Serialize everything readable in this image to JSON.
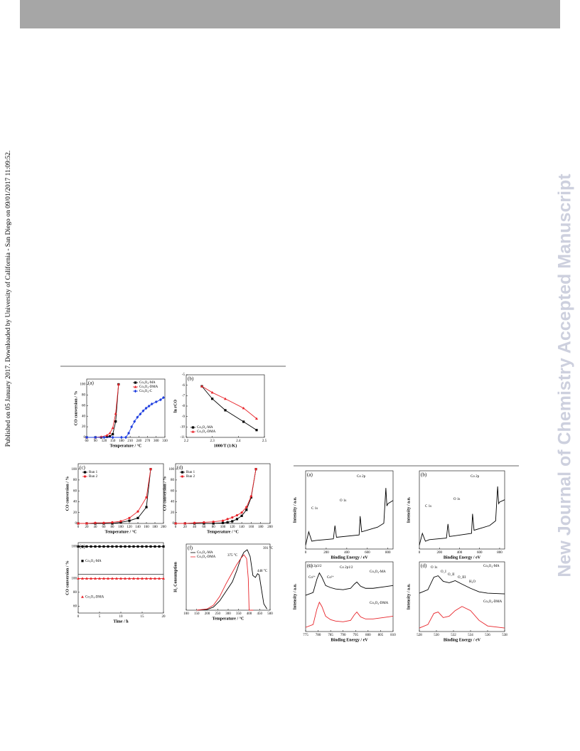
{
  "header": {
    "color": "#a6a6a6"
  },
  "sidebar": "Published on 05 January 2017. Downloaded by University of California - San Diego on 09/01/2017 11:09:52.",
  "watermark": "New Journal of Chemistry Accepted Manuscript",
  "figure1": {
    "panels": [
      {
        "label": "(a)",
        "xlabel": "Temperature / °C",
        "ylabel": "CO conversion / %",
        "xlim": [
          60,
          330
        ],
        "xticks": [
          60,
          90,
          120,
          150,
          180,
          210,
          240,
          270,
          300,
          330
        ],
        "ylim": [
          0,
          110
        ],
        "yticks": [
          0,
          20,
          40,
          60,
          80,
          100
        ],
        "legend": "upper right",
        "series": [
          {
            "name": "Co₃O₄-MA",
            "color": "#000000",
            "marker": "square",
            "x": [
              60,
              90,
              110,
              130,
              140,
              150,
              160,
              170
            ],
            "values": [
              0,
              0,
              0,
              1,
              2,
              6,
              30,
              100
            ]
          },
          {
            "name": "Co₃O₄-DMA",
            "color": "#e8242a",
            "marker": "triangle",
            "x": [
              60,
              90,
              110,
              130,
              140,
              150,
              160,
              170
            ],
            "values": [
              0,
              0,
              1,
              4,
              8,
              18,
              45,
              100
            ]
          },
          {
            "name": "Co₃O₄-C",
            "color": "#1f3fe0",
            "marker": "diamond",
            "x": [
              60,
              90,
              120,
              150,
              180,
              195,
              205,
              215,
              225,
              235,
              245,
              255,
              265,
              275,
              285,
              300,
              315,
              325
            ],
            "values": [
              0,
              0,
              0,
              0,
              0,
              0,
              8,
              20,
              30,
              38,
              44,
              50,
              55,
              59,
              63,
              67,
              71,
              75
            ]
          }
        ]
      },
      {
        "label": "(b)",
        "xlabel": "1000/T (1/K)",
        "ylabel": "ln rCO",
        "xlim": [
          2.2,
          2.5
        ],
        "xticks": [
          2.2,
          2.3,
          2.4,
          2.5
        ],
        "ylim": [
          -11,
          -5
        ],
        "yticks": [
          -11,
          -10,
          -9,
          -8,
          -7,
          -6,
          -5
        ],
        "legend": "lower left",
        "series": [
          {
            "name": "Co₃O₄-MA",
            "color": "#000000",
            "marker": "square",
            "x": [
              2.26,
              2.3,
              2.35,
              2.42,
              2.47
            ],
            "values": [
              -6.1,
              -7.3,
              -8.4,
              -9.5,
              -10.3
            ]
          },
          {
            "name": "Co₃O₄-DMA",
            "color": "#e8242a",
            "marker": "triangle",
            "x": [
              2.26,
              2.3,
              2.35,
              2.42,
              2.47
            ],
            "values": [
              -6.1,
              -6.7,
              -7.3,
              -8.2,
              -9.2
            ]
          }
        ]
      },
      {
        "label": "(c)",
        "xlabel": "Temperature / °C",
        "ylabel": "CO conversion / %",
        "xlim": [
          0,
          200
        ],
        "xticks": [
          0,
          20,
          40,
          60,
          80,
          100,
          120,
          140,
          160,
          180,
          200
        ],
        "ylim": [
          0,
          110
        ],
        "yticks": [
          0,
          20,
          40,
          60,
          80,
          100
        ],
        "legend": "upper left",
        "series": [
          {
            "name": "Run 1",
            "color": "#000000",
            "marker": "square",
            "x": [
              0,
              20,
              40,
              60,
              80,
              100,
              120,
              140,
              160,
              170
            ],
            "values": [
              0,
              0,
              0,
              0,
              0,
              2,
              5,
              10,
              30,
              100
            ]
          },
          {
            "name": "Run 2",
            "color": "#e8242a",
            "marker": "circle",
            "x": [
              0,
              20,
              40,
              60,
              80,
              100,
              120,
              140,
              160,
              170
            ],
            "values": [
              0,
              0,
              1,
              1,
              2,
              4,
              10,
              22,
              48,
              100
            ]
          }
        ]
      },
      {
        "label": "(d)",
        "xlabel": "Temperature / °C",
        "ylabel": "CO conversion / %",
        "xlim": [
          0,
          200
        ],
        "xticks": [
          0,
          20,
          40,
          60,
          80,
          100,
          120,
          140,
          160,
          180,
          200
        ],
        "ylim": [
          0,
          110
        ],
        "yticks": [
          0,
          20,
          40,
          60,
          80,
          100
        ],
        "legend": "upper left",
        "series": [
          {
            "name": "Run 1",
            "color": "#000000",
            "marker": "square",
            "x": [
              0,
              20,
              40,
              60,
              80,
              100,
              110,
              120,
              130,
              140,
              150,
              160,
              170
            ],
            "values": [
              0,
              0,
              0,
              0,
              0,
              1,
              2,
              4,
              8,
              14,
              25,
              48,
              100
            ]
          },
          {
            "name": "Run 2",
            "color": "#e8242a",
            "marker": "circle",
            "x": [
              0,
              20,
              40,
              60,
              80,
              100,
              110,
              120,
              130,
              140,
              150,
              160,
              170
            ],
            "values": [
              0,
              0,
              1,
              2,
              3,
              5,
              8,
              11,
              15,
              20,
              30,
              50,
              100
            ]
          }
        ]
      },
      {
        "label": "(e)",
        "xlabel": "Time / h",
        "ylabel": "CO conversion / %",
        "xlim": [
          0,
          20
        ],
        "xticks": [
          0,
          5,
          10,
          15,
          20
        ],
        "subplots": [
          {
            "ylim": [
              93,
              101
            ],
            "yticks": [
              100
            ],
            "series": [
              {
                "name": "Co₃O₄-MA",
                "color": "#000000",
                "marker": "square",
                "x": [
                  0,
                  1,
                  2,
                  3,
                  4,
                  5,
                  6,
                  7,
                  8,
                  9,
                  10,
                  11,
                  12,
                  13,
                  14,
                  15,
                  16,
                  17,
                  18,
                  19,
                  20
                ],
                "values": [
                  100,
                  100,
                  100,
                  100,
                  100,
                  100,
                  100,
                  100,
                  100,
                  100,
                  100,
                  100,
                  100,
                  100,
                  100,
                  100,
                  100,
                  100,
                  100,
                  100,
                  100
                ]
              }
            ]
          },
          {
            "ylim": [
              50,
              105
            ],
            "yticks": [
              60,
              80,
              100
            ],
            "series": [
              {
                "name": "Co₃O₄-DMA",
                "color": "#e8242a",
                "marker": "triangle",
                "x": [
                  0,
                  1,
                  2,
                  3,
                  4,
                  5,
                  6,
                  7,
                  8,
                  9,
                  10,
                  11,
                  12,
                  13,
                  14,
                  15,
                  16,
                  17,
                  18,
                  19,
                  20
                ],
                "values": [
                  100,
                  100,
                  100,
                  100,
                  100,
                  100,
                  100,
                  100,
                  100,
                  100,
                  100,
                  100,
                  100,
                  100,
                  100,
                  100,
                  100,
                  100,
                  100,
                  100,
                  100
                ]
              }
            ]
          }
        ]
      },
      {
        "label": "(f)",
        "xlabel": "Temperature / °C",
        "ylabel": "H₂ Consumption",
        "xlim": [
          100,
          500
        ],
        "xticks": [
          100,
          150,
          200,
          250,
          300,
          350,
          400,
          450,
          500
        ],
        "ylim": [
          0,
          105
        ],
        "legend": "upper left",
        "annotations": [
          "391 °C",
          "448 °C",
          "375 °C"
        ],
        "series": [
          {
            "name": "Co₃O₄-MA",
            "color": "#000000",
            "x": [
              150,
              200,
              230,
              260,
              290,
              320,
              340,
              360,
              375,
              391,
              405,
              418,
              430,
              440,
              448,
              458,
              470,
              485
            ],
            "values": [
              0,
              1,
              5,
              15,
              30,
              45,
              62,
              82,
              92,
              96,
              85,
              55,
              52,
              58,
              56,
              35,
              10,
              2
            ]
          },
          {
            "name": "Co₃O₄-DMA",
            "color": "#e8242a",
            "x": [
              150,
              200,
              230,
              260,
              290,
              320,
              340,
              360,
              375,
              388,
              396,
              400,
              420
            ],
            "values": [
              0,
              2,
              8,
              22,
              42,
              60,
              72,
              82,
              88,
              82,
              50,
              0,
              0
            ]
          }
        ]
      }
    ]
  },
  "figure2": {
    "panels": [
      {
        "label": "(a)",
        "xlabel": "Binding Energy / eV",
        "ylabel": "Intensity / a.u.",
        "xlim": [
          0,
          850
        ],
        "xticks": [
          0,
          200,
          400,
          600,
          800
        ],
        "ylim": [
          0,
          100
        ],
        "annotations": [
          "C 1s",
          "O 1s",
          "Co 2p"
        ],
        "series": [
          {
            "name": "Co₃O₄-MA",
            "color": "#000000",
            "x": [
              0,
              30,
              60,
              100,
              270,
              285,
              300,
              520,
              530,
              545,
              700,
              760,
              780,
              790,
              800,
              850
            ],
            "values": [
              5,
              22,
              10,
              11,
              13,
              30,
              15,
              18,
              42,
              22,
              28,
              33,
              78,
              55,
              58,
              62
            ]
          }
        ]
      },
      {
        "label": "(b)",
        "xlabel": "Binding Energy / eV",
        "ylabel": "Intensity / a.u.",
        "xlim": [
          0,
          850
        ],
        "xticks": [
          0,
          200,
          400,
          600,
          800
        ],
        "ylim": [
          0,
          100
        ],
        "annotations": [
          "C 1s",
          "O 1s",
          "Co 2p"
        ],
        "series": [
          {
            "name": "Co₃O₄-DMA",
            "color": "#000000",
            "x": [
              0,
              30,
              60,
              100,
              270,
              285,
              300,
              520,
              530,
              545,
              700,
              760,
              780,
              790,
              800,
              850
            ],
            "values": [
              5,
              20,
              10,
              12,
              14,
              32,
              16,
              20,
              45,
              24,
              30,
              36,
              80,
              58,
              60,
              63
            ]
          }
        ]
      },
      {
        "label": "(c)",
        "xlabel": "Binding Energy / eV",
        "ylabel": "Intensity / a.u.",
        "xlim": [
          775,
          810
        ],
        "xticks": [
          775,
          780,
          785,
          790,
          795,
          800,
          805,
          810
        ],
        "ylim": [
          0,
          100
        ],
        "annotations": [
          "Co 2p3/2",
          "Co 2p1/2",
          "Co³⁺",
          "Co²⁺",
          "Co₃O₄-MA",
          "Co₃O₄-DMA"
        ],
        "series": [
          {
            "name": "Co₃O₄-MA",
            "color": "#000000",
            "x": [
              775,
              778,
              779.5,
              780.5,
              781.5,
              783,
              785,
              787,
              790,
              793,
              794.5,
              795.5,
              797,
              799,
              802,
              806,
              810
            ],
            "values": [
              52,
              56,
              75,
              84,
              78,
              66,
              63,
              61,
              60,
              62,
              68,
              71,
              65,
              62,
              62,
              64,
              66
            ]
          },
          {
            "name": "Co₃O₄-DMA",
            "color": "#e8242a",
            "x": [
              775,
              778,
              779.5,
              780.5,
              781.5,
              783,
              785,
              787,
              790,
              793,
              794.5,
              795.5,
              797,
              799,
              802,
              806,
              810
            ],
            "values": [
              6,
              10,
              32,
              42,
              36,
              22,
              17,
              15,
              14,
              16,
              24,
              28,
              21,
              18,
              18,
              20,
              22
            ]
          }
        ]
      },
      {
        "label": "(d)",
        "xlabel": "Binding Energy / eV",
        "ylabel": "Intensity / a.u.",
        "xlim": [
          528,
          538
        ],
        "xticks": [
          528,
          530,
          532,
          534,
          536,
          538
        ],
        "ylim": [
          0,
          100
        ],
        "annotations": [
          "O 1s",
          "O_I",
          "O_II",
          "O_III",
          "H₂O",
          "Co₃O₄-MA",
          "Co₃O₄-DMA"
        ],
        "series": [
          {
            "name": "Co₃O₄-MA",
            "color": "#000000",
            "x": [
              528,
              529,
              529.7,
              530.2,
              530.8,
              531.5,
              532.2,
              533,
              534,
              535,
              536,
              538
            ],
            "values": [
              55,
              60,
              78,
              80,
              72,
              70,
              73,
              68,
              62,
              57,
              55,
              54
            ]
          },
          {
            "name": "Co₃O₄-DMA",
            "color": "#e8242a",
            "x": [
              528,
              529,
              529.7,
              530.2,
              530.8,
              531.5,
              532.2,
              533,
              534,
              535,
              536,
              538
            ],
            "values": [
              5,
              10,
              26,
              28,
              20,
              22,
              30,
              36,
              30,
              16,
              8,
              5
            ]
          }
        ]
      }
    ]
  }
}
